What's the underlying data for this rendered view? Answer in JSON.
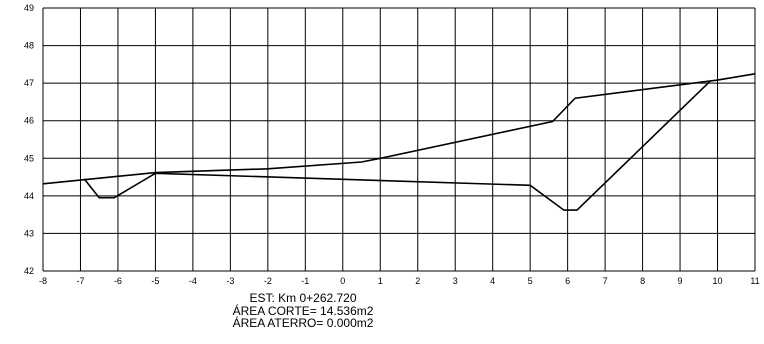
{
  "chart_data": {
    "type": "line",
    "xlim": [
      -8,
      11
    ],
    "ylim": [
      42,
      49
    ],
    "x_ticks": [
      "-8",
      "-7",
      "-6",
      "-5",
      "-4",
      "-3",
      "-2",
      "-1",
      "0",
      "1",
      "2",
      "3",
      "4",
      "5",
      "6",
      "7",
      "8",
      "9",
      "10",
      "11"
    ],
    "y_ticks": [
      "42",
      "43",
      "44",
      "45",
      "46",
      "47",
      "48",
      "49"
    ],
    "grid": true,
    "series": [
      {
        "points": [
          [
            -8,
            44.32
          ],
          [
            -6,
            44.52
          ],
          [
            -5,
            44.62
          ],
          [
            -2,
            44.72
          ],
          [
            0.5,
            44.9
          ],
          [
            1,
            45.0
          ],
          [
            5.6,
            45.98
          ],
          [
            6.2,
            46.6
          ],
          [
            10,
            47.08
          ],
          [
            11,
            47.25
          ]
        ]
      },
      {
        "points": [
          [
            -6.9,
            44.45
          ],
          [
            -6.5,
            43.95
          ],
          [
            -6.1,
            43.95
          ],
          [
            -5,
            44.6
          ],
          [
            5,
            44.28
          ],
          [
            5.9,
            43.62
          ],
          [
            6.25,
            43.62
          ],
          [
            9.8,
            47.05
          ]
        ]
      }
    ],
    "annotations": [
      "EST: Km 0+262.720",
      "ÁREA CORTE= 14.536m2",
      "ÁREA ATERRO= 0.000m2"
    ]
  }
}
